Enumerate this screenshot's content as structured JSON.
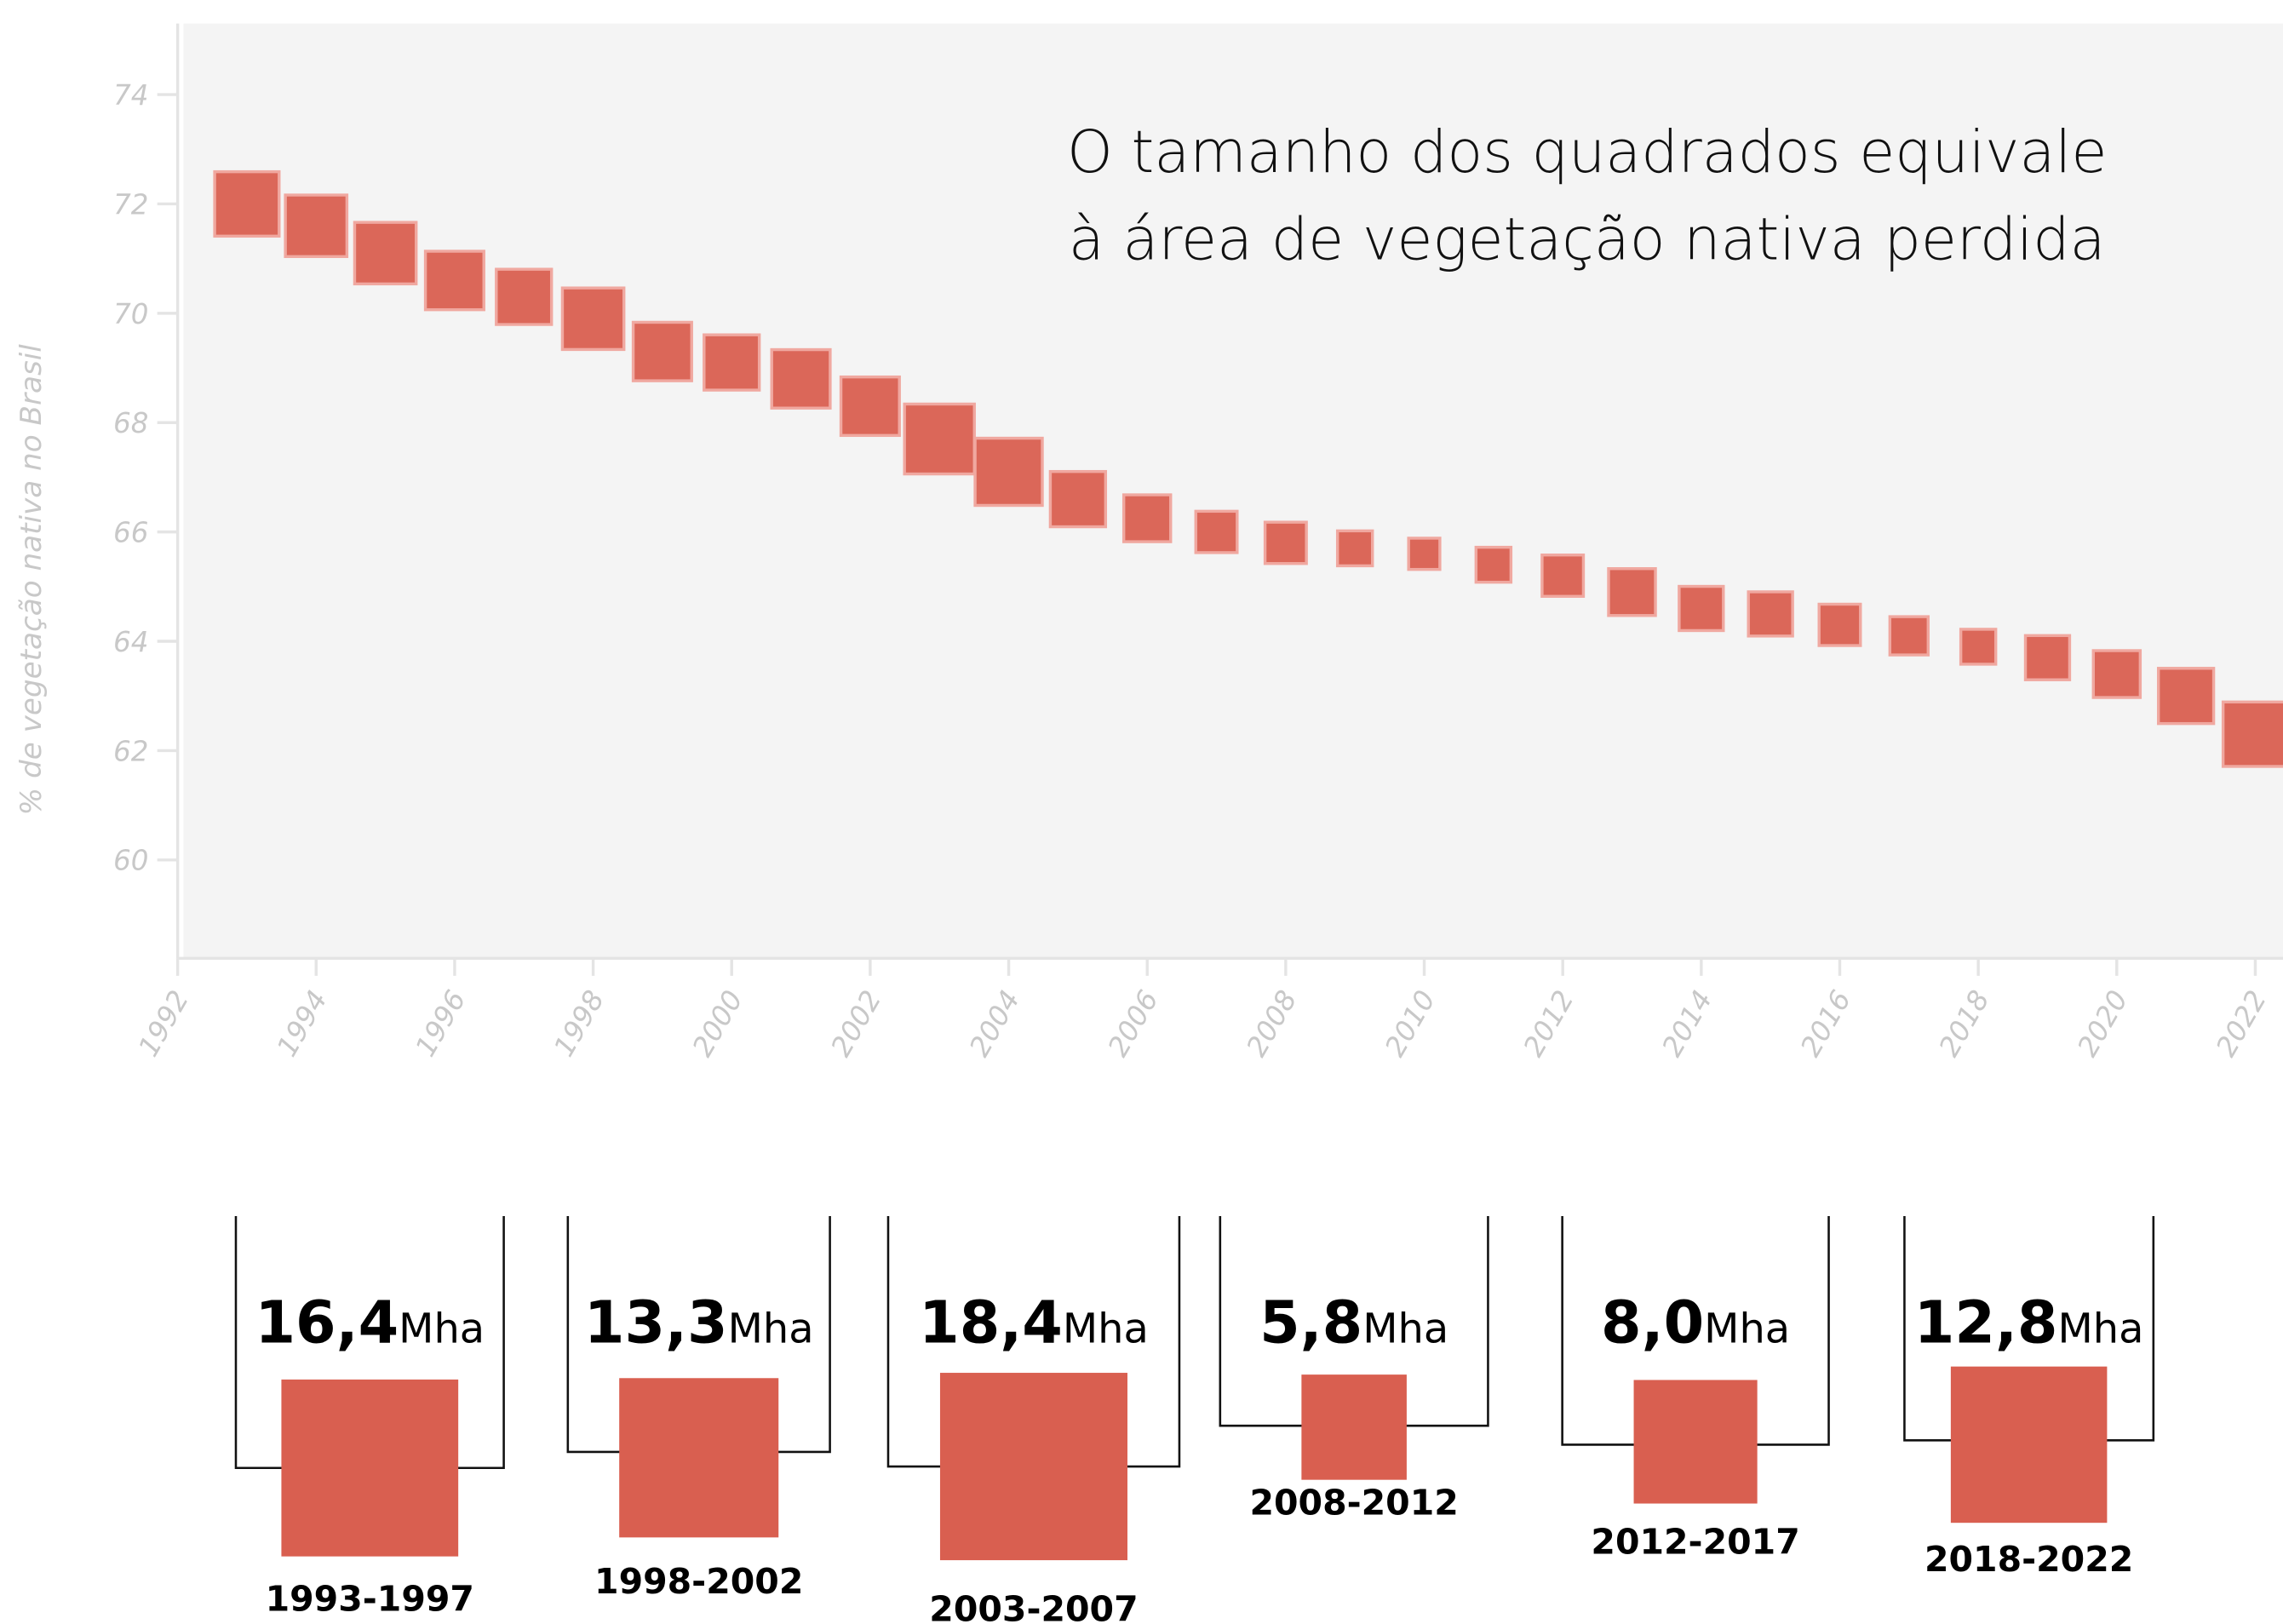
{
  "chart_data": {
    "type": "scatter",
    "title": [
      "O tamanho dos quadrados equivale",
      "à área de vegetação nativa perdida"
    ],
    "y_label": "% de vegetação nativa no Brasil",
    "x": [
      1993,
      1994,
      1995,
      1996,
      1997,
      1998,
      1999,
      2000,
      2001,
      2002,
      2003,
      2004,
      2005,
      2006,
      2007,
      2008,
      2009,
      2010,
      2011,
      2012,
      2013,
      2014,
      2015,
      2016,
      2017,
      2018,
      2019,
      2020,
      2021,
      2022
    ],
    "values": [
      72.0,
      71.6,
      71.1,
      70.6,
      70.3,
      69.9,
      69.3,
      69.1,
      68.8,
      68.3,
      67.7,
      67.1,
      66.6,
      66.25,
      66.0,
      65.8,
      65.7,
      65.6,
      65.4,
      65.2,
      64.9,
      64.6,
      64.5,
      64.3,
      64.1,
      63.9,
      63.7,
      63.4,
      63.0,
      62.3
    ],
    "sizes": [
      3.4,
      3.1,
      3.1,
      2.8,
      2.5,
      3.1,
      2.8,
      2.5,
      2.8,
      2.8,
      4.0,
      3.7,
      2.5,
      1.8,
      1.4,
      1.4,
      1.0,
      0.8,
      1.0,
      1.4,
      1.8,
      1.6,
      1.6,
      1.4,
      1.2,
      1.0,
      1.6,
      1.8,
      2.5,
      3.4
    ],
    "color": "#d95f50",
    "xlim": [
      1992,
      2022.4
    ],
    "xticks": [
      1992,
      1994,
      1996,
      1998,
      2000,
      2002,
      2004,
      2006,
      2008,
      2010,
      2012,
      2014,
      2016,
      2018,
      2020,
      2022
    ],
    "ylim": [
      58.2,
      75.3
    ],
    "yticks": [
      60,
      62,
      64,
      66,
      68,
      70,
      72,
      74
    ],
    "periods": {
      "unit": "Mha",
      "categories": [
        "1993-1997",
        "1998-2002",
        "2003-2007",
        "2008-2012",
        "2012-2017",
        "2018-2022"
      ],
      "values": [
        16.4,
        13.3,
        18.4,
        5.8,
        8.0,
        12.8
      ],
      "value_labels": [
        "16,4",
        "13,3",
        "18,4",
        "5,8",
        "8,0",
        "12,8"
      ]
    }
  }
}
